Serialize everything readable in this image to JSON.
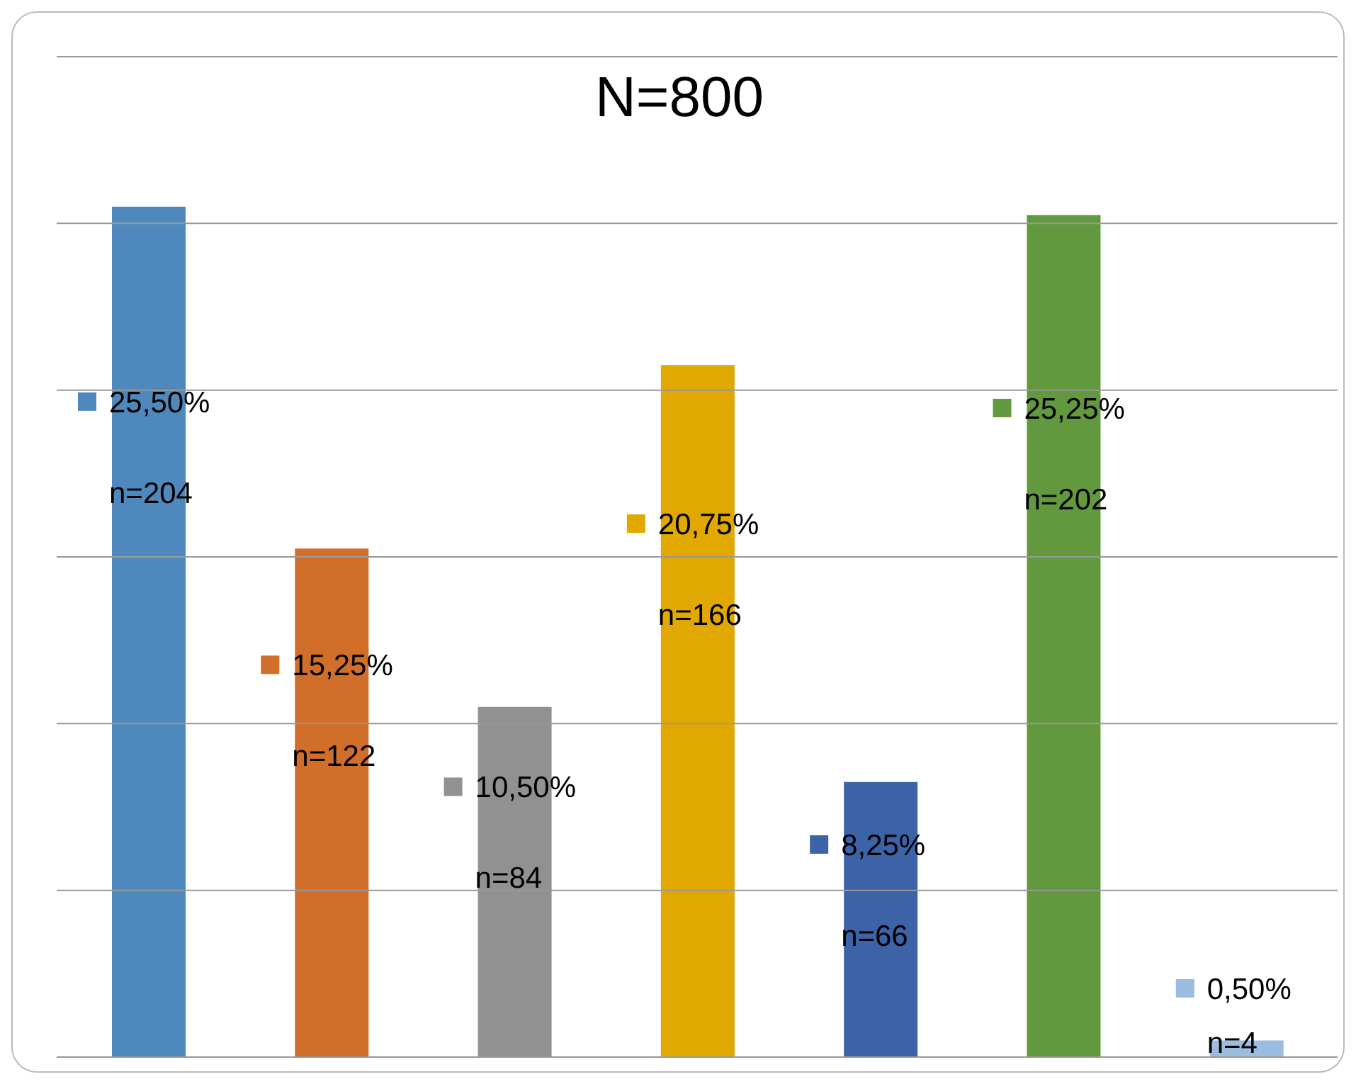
{
  "chart_data": {
    "type": "bar",
    "title": "N=800",
    "categories": [
      null,
      null,
      null,
      null,
      null,
      null,
      null
    ],
    "values": [
      25.5,
      15.25,
      10.5,
      20.75,
      8.25,
      25.25,
      0.5
    ],
    "colors": [
      "#4f88bd",
      "#d06e2a",
      "#919191",
      "#e0a800",
      "#3c62a8",
      "#62993e",
      "#9dbde0"
    ],
    "value_labels": [
      "25,50%",
      "15,25%",
      "10,50%",
      "20,75%",
      "8,25%",
      "25,25%",
      "0,50%"
    ],
    "annotations": [
      "n=204",
      "n=122",
      "n=84",
      "n=166",
      "n=66",
      "n=202",
      "n=4"
    ],
    "ylim": [
      0,
      30
    ],
    "yticks": [
      {
        "value": 0,
        "label": null
      },
      {
        "value": 5,
        "label": null
      },
      {
        "value": 10,
        "label": null
      },
      {
        "value": 15,
        "label": null
      },
      {
        "value": 20,
        "label": null
      },
      {
        "value": 25,
        "label": null
      },
      {
        "value": 30,
        "label": null
      }
    ],
    "grid": "y",
    "tick_labels": false,
    "legend": false
  }
}
